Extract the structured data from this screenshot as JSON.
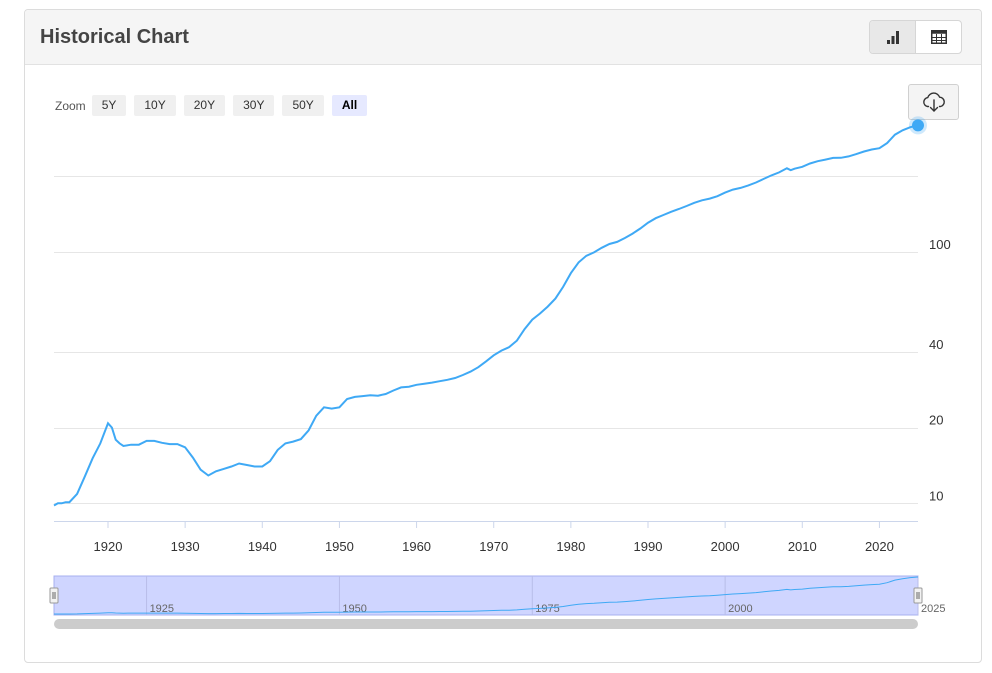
{
  "header": {
    "title": "Historical Chart"
  },
  "view_toggle": [
    {
      "name": "bar-chart-icon",
      "active": true
    },
    {
      "name": "table-icon",
      "active": false
    }
  ],
  "zoom": {
    "label": "Zoom",
    "options": [
      "5Y",
      "10Y",
      "20Y",
      "30Y",
      "50Y",
      "All"
    ],
    "selected": "All"
  },
  "download": {
    "icon": "cloud-download-icon"
  },
  "colors": {
    "series": "#3fa9f5",
    "navigator_fill": "#cfd5ff",
    "navigator_border": "#a7b0ef",
    "grid": "#e6e6e6"
  },
  "chart_data": {
    "type": "line",
    "y_scale": "log",
    "xlim": [
      1913,
      2025
    ],
    "ylim": [
      8.5,
      320
    ],
    "x_ticks": [
      1920,
      1930,
      1940,
      1950,
      1960,
      1970,
      1980,
      1990,
      2000,
      2010,
      2020
    ],
    "y_ticks": [
      10,
      20,
      40,
      100
    ],
    "grid": true,
    "navigator": {
      "labels": [
        "1925",
        "1950",
        "1975",
        "2000",
        "2025"
      ]
    },
    "series": [
      {
        "x": [
          1913,
          1913.5,
          1914,
          1914.5,
          1915,
          1916,
          1917,
          1918,
          1919,
          1920,
          1920.5,
          1921,
          1921.5,
          1922,
          1923,
          1924,
          1925,
          1926,
          1927,
          1928,
          1929,
          1930,
          1931,
          1932,
          1933,
          1934,
          1935,
          1936,
          1937,
          1938,
          1939,
          1940,
          1941,
          1942,
          1943,
          1944,
          1945,
          1946,
          1947,
          1948,
          1949,
          1950,
          1951,
          1952,
          1953,
          1954,
          1955,
          1956,
          1957,
          1958,
          1959,
          1960,
          1961,
          1962,
          1963,
          1964,
          1965,
          1966,
          1967,
          1968,
          1969,
          1970,
          1971,
          1972,
          1973,
          1974,
          1975,
          1976,
          1977,
          1978,
          1979,
          1980,
          1981,
          1982,
          1983,
          1984,
          1985,
          1986,
          1987,
          1988,
          1989,
          1990,
          1991,
          1992,
          1993,
          1994,
          1995,
          1996,
          1997,
          1998,
          1999,
          2000,
          2001,
          2002,
          2003,
          2004,
          2005,
          2006,
          2007,
          2008,
          2008.5,
          2009,
          2010,
          2011,
          2012,
          2013,
          2014,
          2015,
          2016,
          2017,
          2018,
          2019,
          2020,
          2021,
          2022,
          2023,
          2024,
          2025
        ],
        "values": [
          9.8,
          10.0,
          10.0,
          10.1,
          10.1,
          10.9,
          12.8,
          15.1,
          17.3,
          20.8,
          20.0,
          17.9,
          17.3,
          16.9,
          17.1,
          17.1,
          17.7,
          17.7,
          17.4,
          17.2,
          17.2,
          16.7,
          15.2,
          13.6,
          12.9,
          13.4,
          13.7,
          14.0,
          14.4,
          14.2,
          14.0,
          14.0,
          14.7,
          16.3,
          17.3,
          17.6,
          18.0,
          19.5,
          22.3,
          24.1,
          23.8,
          24.1,
          26.0,
          26.5,
          26.7,
          26.9,
          26.8,
          27.2,
          28.1,
          28.9,
          29.1,
          29.6,
          29.9,
          30.2,
          30.6,
          31.0,
          31.5,
          32.4,
          33.4,
          34.8,
          36.7,
          38.8,
          40.5,
          41.8,
          44.4,
          49.3,
          53.8,
          56.9,
          60.6,
          65.2,
          72.6,
          82.4,
          90.9,
          96.5,
          99.6,
          103.9,
          107.6,
          109.6,
          113.6,
          118.3,
          124.0,
          130.7,
          136.2,
          140.3,
          144.5,
          148.2,
          152.4,
          156.9,
          160.5,
          163.0,
          166.6,
          172.2,
          177.1,
          179.9,
          184.0,
          188.9,
          195.3,
          201.6,
          207.3,
          215.3,
          211.4,
          214.5,
          218.1,
          224.9,
          229.6,
          233.0,
          236.7,
          237.0,
          240.0,
          245.1,
          251.1,
          255.7,
          258.8,
          271.0,
          292.7,
          304.7,
          313.7,
          318.9
        ],
        "end_marker": true
      }
    ]
  }
}
